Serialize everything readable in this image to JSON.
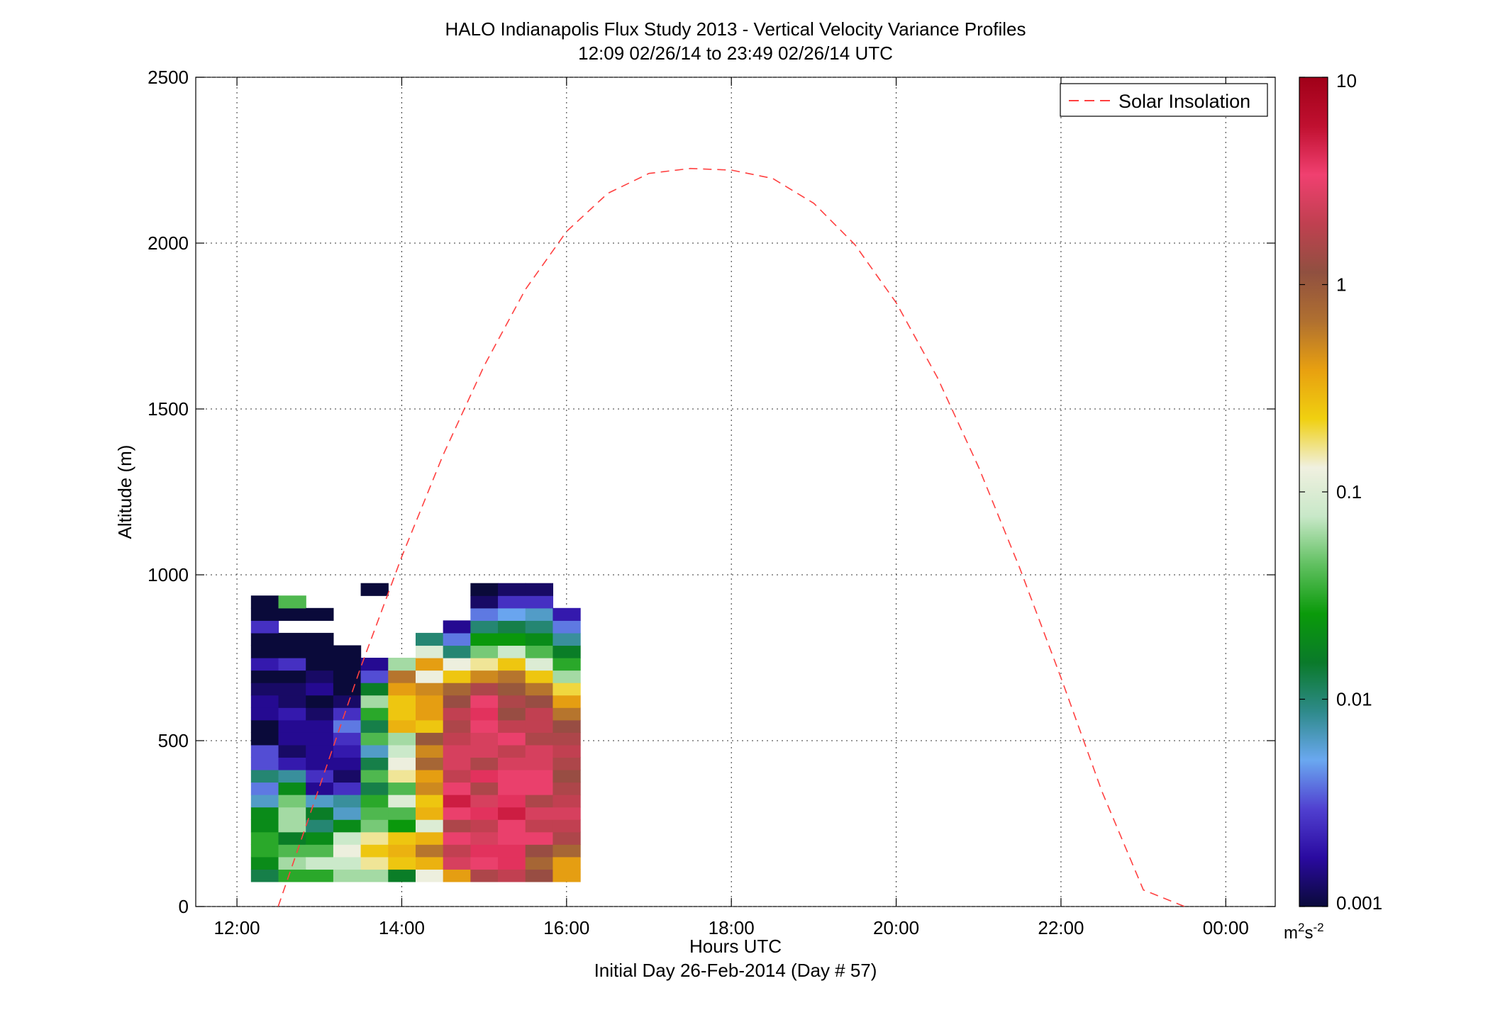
{
  "figure": {
    "title_line1": "HALO Indianapolis Flux Study 2013 - Vertical Velocity Variance Profiles",
    "title_line2": "12:09 02/26/14 to 23:49 02/26/14  UTC",
    "xlabel": "Hours UTC",
    "xlabel_sub": "Initial Day 26-Feb-2014 (Day # 57)",
    "ylabel": "Altitude (m)",
    "colorbar_unit_base": "m",
    "colorbar_unit_exp2": "2",
    "colorbar_unit_mid": "s",
    "colorbar_unit_exp": "-2"
  },
  "chart_data": {
    "type": "heatmap",
    "x_axis": {
      "unit": "hours UTC",
      "range": [
        11.5,
        24.6
      ],
      "ticks": [
        12,
        14,
        16,
        18,
        20,
        22,
        24
      ],
      "tick_labels": [
        "12:00",
        "14:00",
        "16:00",
        "18:00",
        "20:00",
        "22:00",
        "00:00"
      ]
    },
    "y_axis": {
      "unit": "m",
      "range": [
        0,
        2500
      ],
      "ticks": [
        0,
        500,
        1000,
        1500,
        2000,
        2500
      ],
      "tick_labels": [
        "0",
        "500",
        "1000",
        "1500",
        "2000",
        "2500"
      ]
    },
    "grid": true,
    "colorbar": {
      "scale": "log",
      "range": [
        0.001,
        10
      ],
      "ticks": [
        0.001,
        0.01,
        0.1,
        1,
        10
      ],
      "tick_labels": [
        "0.001",
        "0.01",
        "0.1",
        "1",
        "10"
      ],
      "colormap": [
        "#0a0a3a",
        "#2a0aa0",
        "#5040d0",
        "#6aa8f0",
        "#2e8a8a",
        "#0a7a2a",
        "#0a9a0a",
        "#60c060",
        "#c8e8c8",
        "#f0f0e0",
        "#f0d010",
        "#e8a010",
        "#b07030",
        "#905040",
        "#c04050",
        "#f04070",
        "#c01030",
        "#a00018"
      ]
    },
    "heatmap": {
      "time_start": 12.17,
      "time_step": 0.333,
      "alt_start": 75,
      "alt_step": 37.5,
      "value_encoding": "log10 of vertical velocity variance (m2 s-2)",
      "profiles": [
        [
          -1.9,
          -1.7,
          -1.5,
          -1.5,
          -1.7,
          -1.7,
          -2.2,
          -2.4,
          -2.0,
          -2.5,
          -2.5,
          -3.0,
          -3.0,
          -2.8,
          -2.8,
          -2.9,
          -3.0,
          -2.7,
          -3.0,
          -3.0,
          -2.6,
          -3.0,
          -3.0
        ],
        [
          -1.5,
          -1.2,
          -1.4,
          -1.8,
          -1.2,
          -1.2,
          -1.3,
          -1.7,
          -2.1,
          -2.7,
          -2.9,
          -2.8,
          -2.8,
          -2.7,
          -2.9,
          -2.9,
          -3.0,
          -2.6,
          -3.0,
          -3.0,
          null,
          -3.0,
          -1.4
        ],
        [
          -1.5,
          -1.1,
          -1.4,
          -1.7,
          -2.0,
          -1.8,
          -2.2,
          -2.8,
          -2.6,
          -2.8,
          -2.8,
          -2.8,
          -2.8,
          -2.9,
          -3.0,
          -2.8,
          -2.9,
          -3.0,
          -3.0,
          -3.0,
          null,
          -3.0,
          null
        ],
        [
          -1.2,
          -1.1,
          -0.9,
          -1.1,
          -1.7,
          -2.2,
          -2.1,
          -2.6,
          -2.9,
          -2.8,
          -2.7,
          -2.6,
          -2.4,
          -2.6,
          -2.9,
          -3.0,
          -3.0,
          -3.0,
          -3.0,
          null,
          null,
          null,
          null
        ],
        [
          -1.2,
          -0.8,
          -0.6,
          -0.8,
          -1.3,
          -1.4,
          -1.5,
          -1.9,
          -1.4,
          -1.9,
          -2.2,
          -1.4,
          -1.9,
          -1.5,
          -1.2,
          -1.8,
          -2.5,
          -2.8,
          null,
          null,
          null,
          null,
          null,
          -3.0
        ],
        [
          -1.8,
          -0.6,
          -0.5,
          -0.6,
          -1.6,
          -1.4,
          -1.0,
          -1.4,
          -0.8,
          -0.9,
          -1.1,
          -1.2,
          -0.5,
          -0.6,
          -0.6,
          -0.4,
          -0.2,
          -1.2,
          null,
          null,
          null,
          null,
          null,
          null
        ],
        [
          -0.9,
          -0.5,
          -0.2,
          -0.5,
          -1.0,
          -0.5,
          -0.6,
          -0.3,
          -0.4,
          -0.1,
          -0.3,
          0.0,
          -0.6,
          -0.4,
          -0.4,
          -0.3,
          -0.9,
          -0.4,
          -1.0,
          -2.0,
          null,
          null,
          null,
          null
        ],
        [
          -0.4,
          0.4,
          0.3,
          0.5,
          0.2,
          0.5,
          0.7,
          0.5,
          0.3,
          0.4,
          0.4,
          0.3,
          0.2,
          0.3,
          0.1,
          -0.1,
          -0.6,
          -0.9,
          -2.0,
          -2.4,
          -2.8,
          null,
          null,
          null
        ],
        [
          0.2,
          0.5,
          0.6,
          0.4,
          0.3,
          0.6,
          0.4,
          0.2,
          0.6,
          0.2,
          0.4,
          0.4,
          0.5,
          0.6,
          0.5,
          0.2,
          -0.3,
          -0.8,
          -1.3,
          -1.6,
          -2.0,
          -2.4,
          -2.9,
          -3.0
        ],
        [
          0.3,
          0.6,
          0.6,
          0.5,
          0.5,
          0.7,
          0.6,
          0.5,
          0.5,
          0.4,
          0.3,
          0.5,
          0.3,
          0.1,
          0.2,
          0.0,
          -0.2,
          -0.6,
          -1.1,
          -1.6,
          -1.9,
          -2.3,
          -2.6,
          -2.9
        ],
        [
          0.1,
          -0.1,
          0.1,
          0.5,
          0.3,
          0.4,
          0.2,
          0.5,
          0.5,
          0.4,
          0.4,
          0.2,
          0.3,
          0.3,
          0.1,
          -0.2,
          -0.6,
          -1.0,
          -1.4,
          -1.7,
          -2.0,
          -2.2,
          -2.6,
          -2.9
        ],
        [
          -0.4,
          -0.4,
          -0.1,
          0.2,
          0.3,
          0.4,
          0.3,
          0.2,
          0.1,
          0.2,
          0.3,
          0.2,
          0.1,
          -0.2,
          -0.4,
          -0.7,
          -1.2,
          -1.5,
          -1.8,
          -2.1,
          -2.4,
          -2.7,
          null,
          null
        ]
      ]
    },
    "series": [
      {
        "name": "Solar Insolation",
        "style": "dashed",
        "color": "#ff4040",
        "x": [
          12.5,
          13.0,
          13.5,
          14.0,
          14.5,
          15.0,
          15.5,
          16.0,
          16.5,
          17.0,
          17.5,
          18.0,
          18.5,
          19.0,
          19.5,
          20.0,
          20.5,
          21.0,
          21.5,
          22.0,
          22.5,
          23.0,
          23.5
        ],
        "y": [
          0,
          360,
          720,
          1055,
          1360,
          1630,
          1860,
          2035,
          2150,
          2210,
          2225,
          2220,
          2195,
          2120,
          1995,
          1820,
          1595,
          1325,
          1020,
          690,
          345,
          50,
          0
        ]
      }
    ],
    "legend": {
      "placement": "top-right",
      "entries": [
        "Solar Insolation"
      ]
    }
  }
}
